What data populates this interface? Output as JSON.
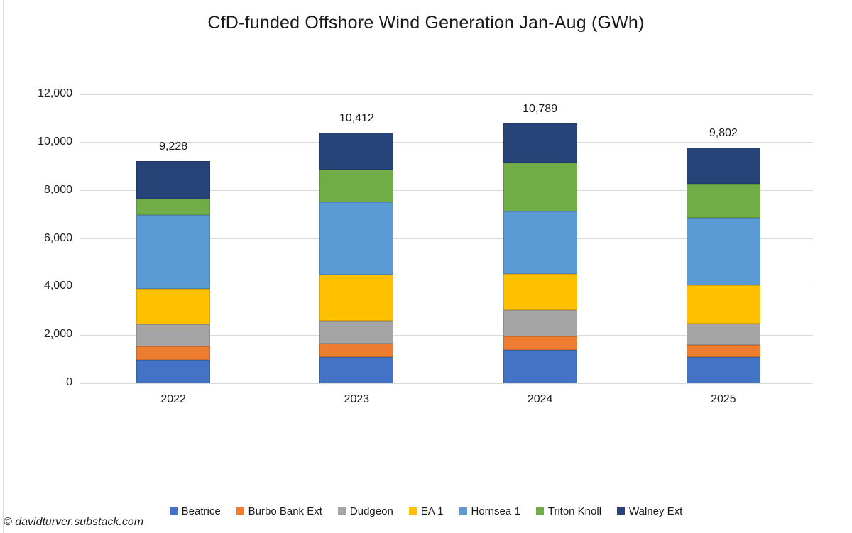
{
  "title": "CfD-funded Offshore Wind Generation Jan-Aug (GWh)",
  "watermark": "© davidturver.substack.com",
  "colors": {
    "background": "#ffffff",
    "gridline": "#d9d9d9",
    "axis_text": "#222222",
    "title_text": "#1a1a1a"
  },
  "chart_data": {
    "type": "bar",
    "stacked": true,
    "title": "CfD-funded Offshore Wind Generation Jan-Aug (GWh)",
    "xlabel": "",
    "ylabel": "",
    "grid": true,
    "legend_position": "bottom",
    "categories": [
      "2022",
      "2023",
      "2024",
      "2025"
    ],
    "series": [
      {
        "name": "Beatrice",
        "color": "#4472C4",
        "values": [
          985,
          1100,
          1400,
          1080
        ]
      },
      {
        "name": "Burbo Bank Ext",
        "color": "#ED7D31",
        "values": [
          540,
          550,
          560,
          515
        ]
      },
      {
        "name": "Dudgeon",
        "color": "#A5A5A5",
        "values": [
          930,
          950,
          1080,
          890
        ]
      },
      {
        "name": "EA 1",
        "color": "#FFC000",
        "values": [
          1475,
          1900,
          1505,
          1590
        ]
      },
      {
        "name": "Hornsea 1",
        "color": "#5B9BD5",
        "values": [
          3065,
          3020,
          2585,
          2800
        ]
      },
      {
        "name": "Triton Knoll",
        "color": "#70AD47",
        "values": [
          670,
          1350,
          2040,
          1410
        ]
      },
      {
        "name": "Walney Ext",
        "color": "#264478",
        "values": [
          1563,
          1542,
          1619,
          1517
        ]
      }
    ],
    "totals": [
      9228,
      10412,
      10789,
      9802
    ],
    "total_labels": [
      "9,228",
      "10,412",
      "10,789",
      "9,802"
    ],
    "y_axis": {
      "min": 0,
      "max": 12000,
      "step": 2000,
      "tick_values": [
        0,
        2000,
        4000,
        6000,
        8000,
        10000,
        12000
      ],
      "tick_labels": [
        "0",
        "2,000",
        "4,000",
        "6,000",
        "8,000",
        "10,000",
        "12,000"
      ]
    }
  }
}
